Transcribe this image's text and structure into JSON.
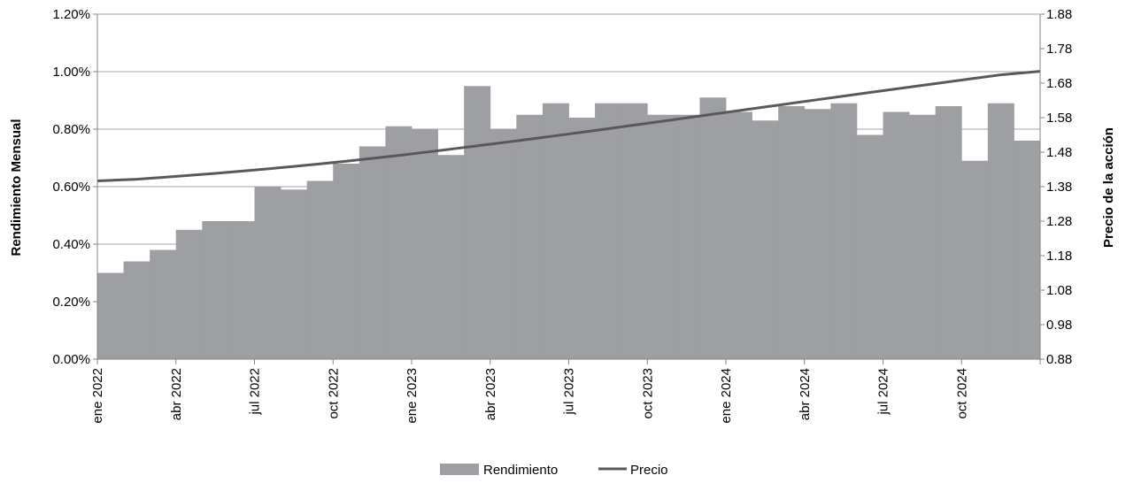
{
  "chart_data": {
    "type": "bar+line",
    "ylabel_left": "Rendimiento Mensual",
    "ylabel_right": "Precio de la acción",
    "ylim_left": [
      0,
      0.012
    ],
    "ylim_right": [
      0.88,
      1.88
    ],
    "left_ticks": [
      "0.00%",
      "0.20%",
      "0.40%",
      "0.60%",
      "0.80%",
      "1.00%",
      "1.20%"
    ],
    "right_ticks": [
      "0.88",
      "0.98",
      "1.08",
      "1.18",
      "1.28",
      "1.38",
      "1.48",
      "1.58",
      "1.68",
      "1.78",
      "1.88"
    ],
    "x_tick_labels": [
      "ene 2022",
      "abr 2022",
      "jul 2022",
      "oct 2022",
      "ene 2023",
      "abr 2023",
      "jul 2023",
      "oct 2023",
      "ene 2024",
      "abr 2024",
      "jul 2024",
      "oct 2024"
    ],
    "months": [
      "ene 2022",
      "feb 2022",
      "mar 2022",
      "abr 2022",
      "may 2022",
      "jun 2022",
      "jul 2022",
      "ago 2022",
      "sep 2022",
      "oct 2022",
      "nov 2022",
      "dic 2022",
      "ene 2023",
      "feb 2023",
      "mar 2023",
      "abr 2023",
      "may 2023",
      "jun 2023",
      "jul 2023",
      "ago 2023",
      "sep 2023",
      "oct 2023",
      "nov 2023",
      "dic 2023",
      "ene 2024",
      "feb 2024",
      "mar 2024",
      "abr 2024",
      "may 2024",
      "jun 2024",
      "jul 2024",
      "ago 2024",
      "sep 2024",
      "oct 2024",
      "nov 2024",
      "dic 2024"
    ],
    "series": [
      {
        "name": "Rendimiento",
        "type": "bar",
        "axis": "left",
        "color": "#9d9fa2",
        "values": [
          0.003,
          0.0034,
          0.0038,
          0.0045,
          0.0048,
          0.0048,
          0.006,
          0.0059,
          0.0062,
          0.0068,
          0.0074,
          0.0081,
          0.008,
          0.0071,
          0.0095,
          0.008,
          0.0085,
          0.0089,
          0.0084,
          0.0089,
          0.0089,
          0.0085,
          0.0085,
          0.0091,
          0.0086,
          0.0083,
          0.0088,
          0.0087,
          0.0089,
          0.0078,
          0.0086,
          0.0085,
          0.0088,
          0.0069,
          0.0089,
          0.0076
        ]
      },
      {
        "name": "Precio",
        "type": "line",
        "axis": "right",
        "color": "#595959",
        "values": [
          1.3965,
          1.4016,
          1.4069,
          1.4126,
          1.4186,
          1.4248,
          1.4316,
          1.4386,
          1.4459,
          1.4537,
          1.462,
          1.4705,
          1.4795,
          1.4888,
          1.4982,
          1.5079,
          1.5176,
          1.5276,
          1.5377,
          1.548,
          1.5584,
          1.5688,
          1.5793,
          1.5899,
          1.6005,
          1.6111,
          1.6216,
          1.6321,
          1.6426,
          1.653,
          1.6633,
          1.6736,
          1.6838,
          1.694,
          1.7042,
          1.7143
        ]
      }
    ],
    "legend": {
      "position": "bottom",
      "entries": [
        "Rendimiento",
        "Precio"
      ]
    },
    "grid": "horizontal"
  }
}
